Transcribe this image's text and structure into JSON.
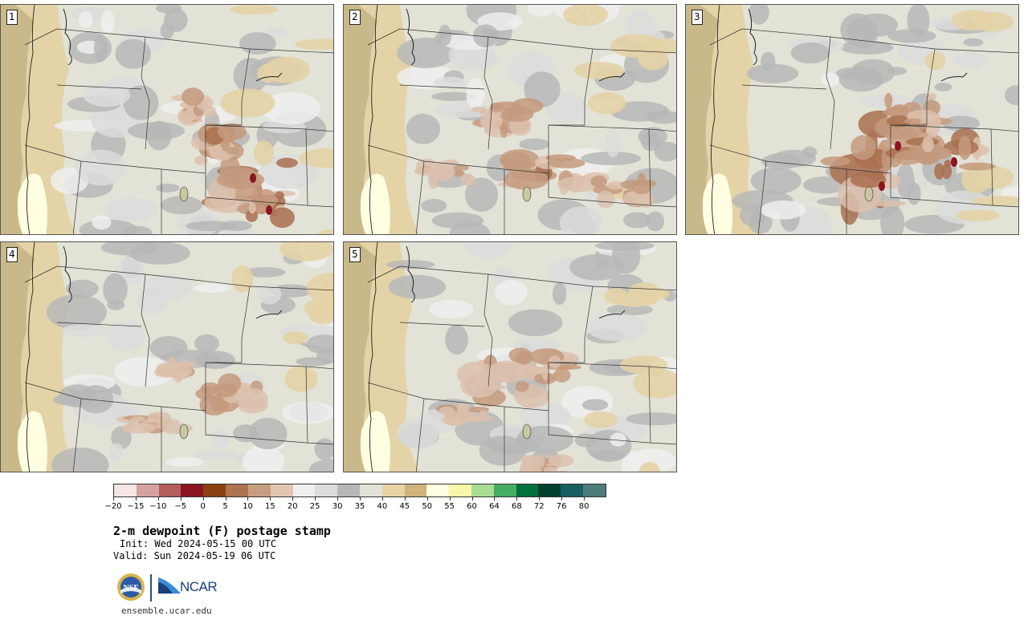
{
  "product": {
    "title": "2-m dewpoint (F) postage stamp",
    "init": "Init: Wed 2024-05-15 00 UTC",
    "valid": "Valid: Sun 2024-05-19 06 UTC",
    "footer_url": "ensemble.ucar.edu"
  },
  "logos": {
    "nsf_label": "NSF",
    "ncar_label": "NCAR"
  },
  "members": [
    {
      "label": "1",
      "dry_region": "southern Wyoming / northern Colorado",
      "dry_level": "strong"
    },
    {
      "label": "2",
      "dry_region": "Montana to Wyoming",
      "dry_level": "moderate"
    },
    {
      "label": "3",
      "dry_region": "Idaho, Wyoming, Montana",
      "dry_level": "strong"
    },
    {
      "label": "4",
      "dry_region": "Montana / Wyoming",
      "dry_level": "weak"
    },
    {
      "label": "5",
      "dry_region": "Idaho / Wyoming",
      "dry_level": "weak"
    }
  ],
  "colorbar": {
    "unit": "F",
    "tick_labels": [
      "−20",
      "−15",
      "−10",
      "−5",
      "0",
      "5",
      "10",
      "15",
      "20",
      "25",
      "30",
      "35",
      "40",
      "45",
      "50",
      "55",
      "60",
      "64",
      "68",
      "72",
      "76",
      "80"
    ],
    "colors": [
      "#f3e6e4",
      "#d6a1a1",
      "#b35c5c",
      "#8a1520",
      "#8a4010",
      "#ad7350",
      "#c89e80",
      "#e2c6b2",
      "#efefef",
      "#dcdcdc",
      "#b7b7b7",
      "#e2e2d6",
      "#e5d3a5",
      "#cfb37a",
      "#fffee0",
      "#f8f6a8",
      "#a8dc92",
      "#44ad62",
      "#00703c",
      "#00402e",
      "#185e60",
      "#4c7c7c"
    ]
  },
  "map_colors": {
    "ocean": "#c9b98a",
    "coast_dry": "#e4d3a6",
    "plain": "#e2e2d6",
    "gray_light": "#dcdcdc",
    "gray_mid": "#b7b7b7",
    "white": "#efefef",
    "brown_light": "#dcc1ad",
    "brown_mid": "#c49a7e",
    "brown_dark": "#a97050",
    "red_dark": "#8a1520",
    "yellow": "#fffee0",
    "border": "#333333"
  }
}
